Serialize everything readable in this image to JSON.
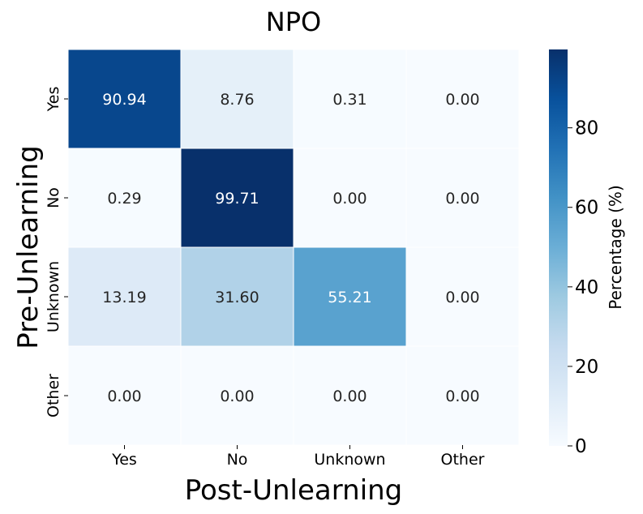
{
  "chart_data": {
    "type": "heatmap",
    "title": "NPO",
    "xlabel": "Post-Unlearning",
    "ylabel": "Pre-Unlearning",
    "x_categories": [
      "Yes",
      "No",
      "Unknown",
      "Other"
    ],
    "y_categories": [
      "Yes",
      "No",
      "Unknown",
      "Other"
    ],
    "values": [
      [
        90.94,
        8.76,
        0.31,
        0.0
      ],
      [
        0.29,
        99.71,
        0.0,
        0.0
      ],
      [
        13.19,
        31.6,
        55.21,
        0.0
      ],
      [
        0.0,
        0.0,
        0.0,
        0.0
      ]
    ],
    "cell_labels": [
      [
        "90.94",
        "8.76",
        "0.31",
        "0.00"
      ],
      [
        "0.29",
        "99.71",
        "0.00",
        "0.00"
      ],
      [
        "13.19",
        "31.60",
        "55.21",
        "0.00"
      ],
      [
        "0.00",
        "0.00",
        "0.00",
        "0.00"
      ]
    ],
    "colorbar": {
      "label": "Percentage (%)",
      "range": [
        0,
        99.71
      ],
      "ticks": [
        0,
        20,
        40,
        60,
        80
      ],
      "tick_labels": [
        "0",
        "20",
        "40",
        "60",
        "80"
      ],
      "colormap": "Blues"
    },
    "grid": false
  }
}
